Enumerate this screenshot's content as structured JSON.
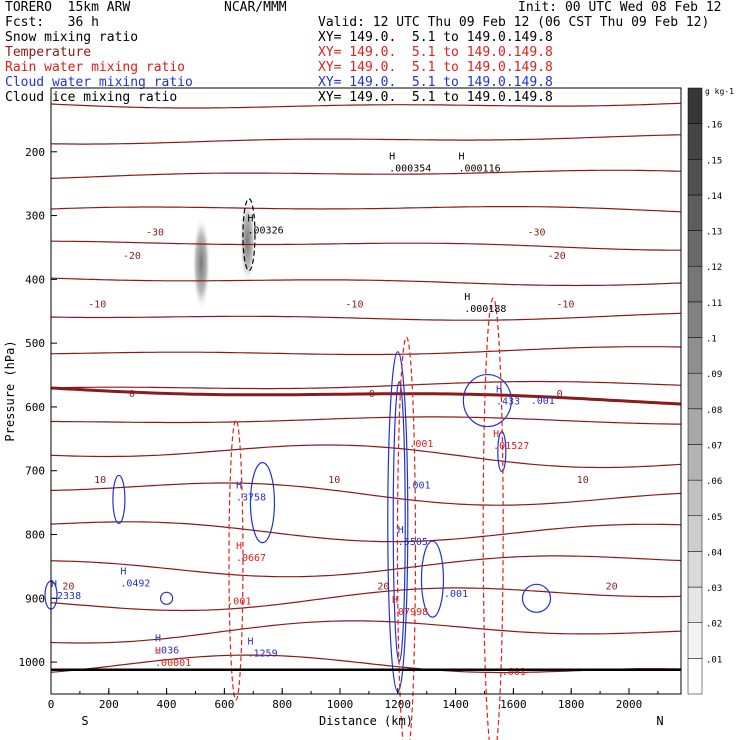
{
  "header": {
    "model": "TORERO  15km ARW",
    "org": "NCAR/MMM",
    "init": "Init: 00 UTC Wed 08 Feb 12",
    "fcst": "Fcst:   36 h",
    "valid": "Valid: 12 UTC Thu 09 Feb 12 (06 CST Thu 09 Feb 12)"
  },
  "legend": [
    {
      "label": "Snow mixing ratio",
      "color": "#000000",
      "xy": "XY= 149.0.  5.1 to 149.0.149.8"
    },
    {
      "label": "Temperature",
      "color": "#8b1a1a",
      "xy": "XY= 149.0.  5.1 to 149.0.149.8"
    },
    {
      "label": "Rain water mixing ratio",
      "color": "#e0201a",
      "xy": "XY= 149.0.  5.1 to 149.0.149.8"
    },
    {
      "label": "Cloud water mixing ratio",
      "color": "#2233cc",
      "xy": "XY= 149.0.  5.1 to 149.0.149.8"
    },
    {
      "label": "Cloud ice mixing ratio",
      "color": "#000000",
      "xy": "XY= 149.0.  5.1 to 149.0.149.8"
    }
  ],
  "chart_data": {
    "type": "contour-cross-section",
    "xlabel": "Distance (km)",
    "ylabel": "Pressure (hPa)",
    "xlim": [
      0,
      2180
    ],
    "ylim": [
      1050,
      100
    ],
    "x_ticks": [
      0,
      200,
      400,
      600,
      800,
      1000,
      1200,
      1400,
      1600,
      1800,
      2000
    ],
    "y_ticks": [
      200,
      300,
      400,
      500,
      600,
      700,
      800,
      900,
      1000
    ],
    "end_labels": {
      "left": "S",
      "right": "N"
    },
    "colorbar": {
      "unit": "g kg-1",
      "ticks": [
        ".01",
        ".02",
        ".03",
        ".04",
        ".05",
        ".06",
        ".07",
        ".08",
        ".09",
        ".1",
        ".11",
        ".12",
        ".13",
        ".14",
        ".15",
        ".16"
      ]
    },
    "temperature_contours": [
      {
        "label": "-30",
        "p": 325,
        "label_x": [
          360,
          1680
        ]
      },
      {
        "label": "-20",
        "p": 362,
        "label_x": [
          280,
          1750
        ]
      },
      {
        "label": "-10",
        "p": 438,
        "label_x": [
          160,
          1050,
          1780
        ]
      },
      {
        "label": "0",
        "p": 578,
        "label_x": [
          280,
          1110,
          1760
        ]
      },
      {
        "label": "10",
        "p": 713,
        "label_x": [
          170,
          980,
          1840
        ]
      },
      {
        "label": "20",
        "p": 880,
        "label_x": [
          60,
          1150,
          1940
        ]
      }
    ],
    "extrema_labels": [
      {
        "mark": "H",
        "value": ".00326",
        "x": 680,
        "p": 322,
        "color": "#000000"
      },
      {
        "mark": "H",
        "value": ".000354",
        "x": 1170,
        "p": 225,
        "color": "#000000"
      },
      {
        "mark": "H",
        "value": ".000116",
        "x": 1410,
        "p": 225,
        "color": "#000000"
      },
      {
        "mark": "H",
        "value": ".000188",
        "x": 1430,
        "p": 445,
        "color": "#000000"
      },
      {
        "mark": "H",
        "value": ".433",
        "x": 1540,
        "p": 590,
        "color": "#2233cc"
      },
      {
        "mark": "H",
        "value": ".3758",
        "x": 640,
        "p": 740,
        "color": "#2233cc"
      },
      {
        "mark": "H",
        "value": ".5505",
        "x": 1200,
        "p": 810,
        "color": "#2233cc"
      },
      {
        "mark": "H",
        "value": ".0492",
        "x": 240,
        "p": 875,
        "color": "#2233cc"
      },
      {
        "mark": "H",
        "value": ".1259",
        "x": 680,
        "p": 985,
        "color": "#2233cc"
      },
      {
        "mark": "H",
        "value": ".036",
        "x": 360,
        "p": 980,
        "color": "#2233cc"
      },
      {
        "mark": "H",
        "value": ".2338",
        "x": 0,
        "p": 895,
        "color": "#2233cc"
      },
      {
        "mark": "H",
        "value": ".0667",
        "x": 640,
        "p": 835,
        "color": "#e0201a"
      },
      {
        "mark": "H",
        "value": ".07998",
        "x": 1180,
        "p": 920,
        "color": "#e0201a"
      },
      {
        "mark": "H",
        "value": ".01527",
        "x": 1530,
        "p": 660,
        "color": "#e0201a"
      },
      {
        "mark": "H",
        "value": ".00001",
        "x": 360,
        "p": 1000,
        "color": "#e0201a"
      }
    ],
    "contour_labels": [
      {
        "value": ".001",
        "x": 1660,
        "p": 595,
        "color": "#2233cc"
      },
      {
        "value": ".001",
        "x": 1230,
        "p": 728,
        "color": "#2233cc"
      },
      {
        "value": ".001",
        "x": 1360,
        "p": 898,
        "color": "#2233cc"
      },
      {
        "value": ".001",
        "x": 1240,
        "p": 663,
        "color": "#e0201a"
      },
      {
        "value": ".001",
        "x": 610,
        "p": 910,
        "color": "#e0201a"
      },
      {
        "value": ".001",
        "x": 1560,
        "p": 1020,
        "color": "#e0201a"
      }
    ]
  }
}
